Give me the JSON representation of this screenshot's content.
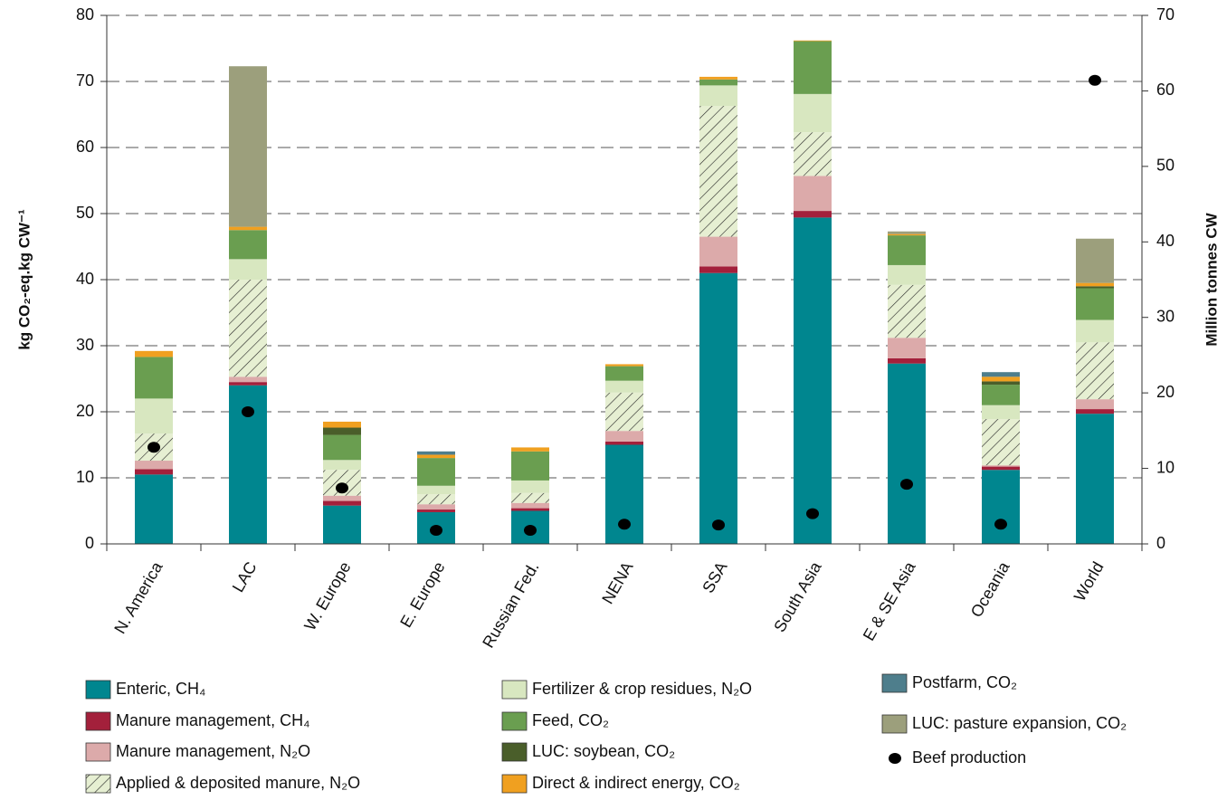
{
  "chart_data": {
    "type": "bar",
    "stacked": true,
    "y_label": "kg CO₂-eq.kg CW⁻¹",
    "y2_label": "Million tonnes CW",
    "categories": [
      "N. America",
      "LAC",
      "W. Europe",
      "E. Europe",
      "Russian Fed.",
      "NENA",
      "SSA",
      "South Asia",
      "E & SE Asia",
      "Oceania",
      "World"
    ],
    "ylim": [
      0,
      80
    ],
    "yticks": [
      0,
      10,
      20,
      30,
      40,
      50,
      60,
      70,
      80
    ],
    "y2lim": [
      0,
      70
    ],
    "y2ticks": [
      0,
      10,
      20,
      30,
      40,
      50,
      60,
      70
    ],
    "grid": true,
    "series": [
      {
        "name": "Enteric, CH₄",
        "color": "#00868f",
        "values": [
          10.5,
          24.0,
          5.8,
          4.8,
          5.0,
          15.0,
          41.0,
          49.4,
          27.3,
          11.2,
          19.7
        ]
      },
      {
        "name": "Manure management, CH₄",
        "color": "#a3203b",
        "values": [
          0.8,
          0.5,
          0.7,
          0.4,
          0.4,
          0.5,
          1.0,
          1.0,
          0.8,
          0.5,
          0.7
        ]
      },
      {
        "name": "Manure management, N₂O",
        "color": "#dcaaaa",
        "values": [
          1.3,
          0.8,
          0.8,
          0.8,
          0.8,
          1.6,
          4.5,
          5.3,
          3.1,
          0.2,
          1.5
        ]
      },
      {
        "name": "Applied & deposited manure, N₂O",
        "color": "#e6efd2",
        "hatch": true,
        "values": [
          4.1,
          14.7,
          3.9,
          1.5,
          1.5,
          5.8,
          19.8,
          6.6,
          8.0,
          7.0,
          8.6
        ]
      },
      {
        "name": "Fertilizer & crop residues, N₂O",
        "color": "#d8e7c0",
        "values": [
          5.3,
          3.1,
          1.5,
          1.3,
          1.9,
          1.8,
          3.1,
          5.8,
          3.0,
          2.1,
          3.4
        ]
      },
      {
        "name": "Feed, CO₂",
        "color": "#6a9e50",
        "values": [
          6.3,
          4.4,
          3.8,
          4.2,
          4.4,
          2.2,
          0.9,
          8.0,
          4.5,
          3.1,
          4.8
        ]
      },
      {
        "name": "LUC: soybean, CO₂",
        "color": "#4a5e2a",
        "values": [
          0,
          0,
          1.1,
          0,
          0,
          0,
          0,
          0,
          0,
          0.5,
          0.3
        ]
      },
      {
        "name": "Direct & indirect energy, CO₂",
        "color": "#f0a020",
        "values": [
          0.9,
          0.5,
          0.9,
          0.5,
          0.6,
          0.3,
          0.4,
          0.1,
          0.2,
          0.7,
          0.5
        ]
      },
      {
        "name": "Postfarm, CO₂",
        "color": "#4e7e8c",
        "values": [
          0,
          0,
          0,
          0.5,
          0,
          0,
          0,
          0,
          0,
          0.7,
          0
        ]
      },
      {
        "name": "LUC: pasture expansion, CO₂",
        "color": "#9c9f7c",
        "values": [
          0,
          24.3,
          0,
          0,
          0,
          0,
          0,
          0,
          0.4,
          0,
          6.7
        ]
      },
      {
        "name": "Beef production",
        "color": "#000000",
        "type": "scatter",
        "axis": "y2",
        "values": [
          12.8,
          17.5,
          7.4,
          1.8,
          1.8,
          2.6,
          2.5,
          4.0,
          7.9,
          2.6,
          61.4
        ]
      }
    ]
  }
}
